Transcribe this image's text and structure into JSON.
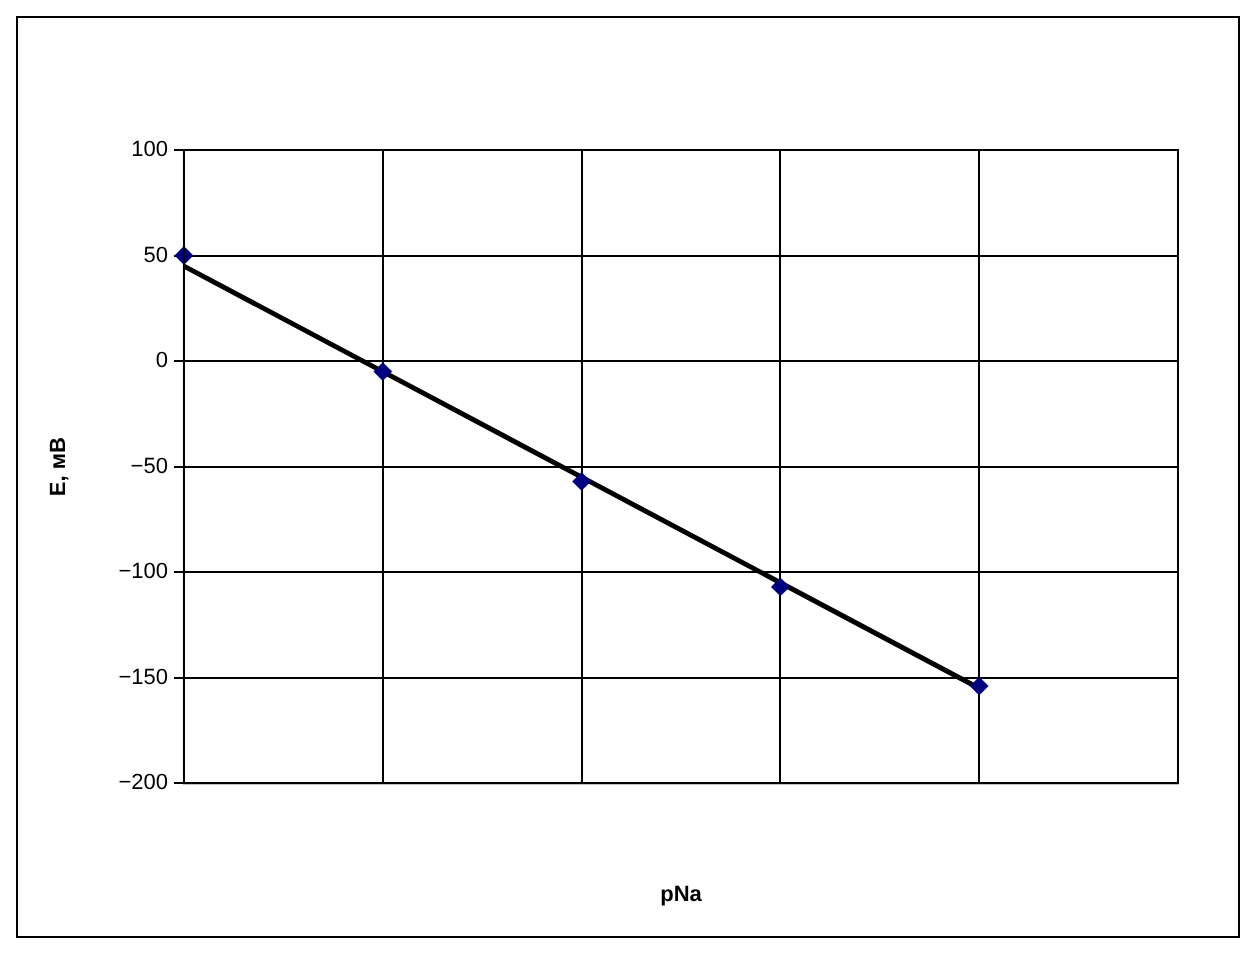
{
  "chart_data": {
    "type": "scatter",
    "xlabel": "pNa",
    "ylabel": "E, мВ",
    "categories": [
      null,
      null,
      null,
      null,
      null,
      null
    ],
    "series": [
      {
        "type": "scatter",
        "color": "#000080",
        "values": [
          50,
          -5,
          -57,
          -107,
          -154,
          null
        ],
        "marker": "diamond"
      },
      {
        "type": "line",
        "color": "#000000",
        "values": [
          45,
          -5,
          -55,
          -105,
          -155,
          null
        ],
        "marker": "none",
        "line_style": "solid"
      }
    ],
    "ylim": [
      -200,
      100
    ],
    "yticks": [
      -200,
      -150,
      -100,
      -50,
      0,
      50,
      100
    ],
    "grid": true,
    "legend": false
  }
}
